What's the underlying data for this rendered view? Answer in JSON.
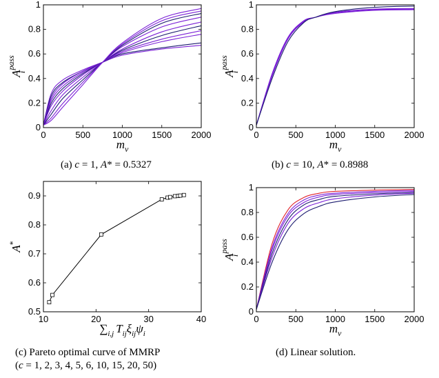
{
  "colors": {
    "purple": "#7a1fd6",
    "navy": "#1a1a6e",
    "red": "#e0202a",
    "black": "#000000"
  },
  "captions": {
    "a": "(a) c = 1, A* = 0.5327",
    "b": "(b) c = 10, A* = 0.8988",
    "c1": "(c) Pareto optimal curve of MMRP",
    "c2": "(c = 1, 2, 3, 4, 5, 6, 10, 15, 20, 50)",
    "d": "(d) Linear solution."
  },
  "chart_data": [
    {
      "id": "a",
      "type": "line",
      "xlabel": "m_v",
      "ylabel": "A_i^pass",
      "xlim": [
        0,
        2000
      ],
      "ylim": [
        0,
        1
      ],
      "xticks": [
        "0",
        "500",
        "1000",
        "1500",
        "2000"
      ],
      "yticks": [
        "0",
        "0.2",
        "0.4",
        "0.6",
        "0.8",
        "1"
      ],
      "note": "curves cross at (750, 0.5327)",
      "series": [
        {
          "x": [
            0,
            100,
            250,
            500,
            750,
            1000,
            1500,
            2000
          ],
          "y": [
            0.02,
            0.28,
            0.39,
            0.47,
            0.5327,
            0.59,
            0.64,
            0.67
          ]
        },
        {
          "x": [
            0,
            100,
            250,
            500,
            750,
            1000,
            1500,
            2000
          ],
          "y": [
            0.02,
            0.26,
            0.37,
            0.46,
            0.5327,
            0.6,
            0.65,
            0.69
          ]
        },
        {
          "x": [
            0,
            100,
            250,
            500,
            750,
            1000,
            1500,
            2000
          ],
          "y": [
            0.02,
            0.24,
            0.36,
            0.46,
            0.5327,
            0.61,
            0.7,
            0.76
          ]
        },
        {
          "x": [
            0,
            100,
            250,
            500,
            750,
            1000,
            1500,
            2000
          ],
          "y": [
            0.02,
            0.22,
            0.34,
            0.45,
            0.5327,
            0.62,
            0.72,
            0.79
          ]
        },
        {
          "x": [
            0,
            100,
            250,
            500,
            750,
            1000,
            1500,
            2000
          ],
          "y": [
            0.02,
            0.2,
            0.32,
            0.44,
            0.5327,
            0.63,
            0.75,
            0.83
          ]
        },
        {
          "x": [
            0,
            100,
            250,
            500,
            750,
            1000,
            1500,
            2000
          ],
          "y": [
            0.02,
            0.18,
            0.3,
            0.43,
            0.5327,
            0.64,
            0.78,
            0.86
          ]
        },
        {
          "x": [
            0,
            100,
            250,
            500,
            750,
            1000,
            1500,
            2000
          ],
          "y": [
            0.02,
            0.14,
            0.27,
            0.41,
            0.5327,
            0.66,
            0.82,
            0.9
          ]
        },
        {
          "x": [
            0,
            100,
            250,
            500,
            750,
            1000,
            1500,
            2000
          ],
          "y": [
            0.02,
            0.11,
            0.24,
            0.39,
            0.5327,
            0.67,
            0.85,
            0.93
          ]
        },
        {
          "x": [
            0,
            100,
            250,
            500,
            750,
            1000,
            1500,
            2000
          ],
          "y": [
            0.02,
            0.08,
            0.2,
            0.37,
            0.5327,
            0.68,
            0.87,
            0.95
          ]
        },
        {
          "x": [
            0,
            100,
            250,
            500,
            750,
            1000,
            1500,
            2000
          ],
          "y": [
            0.02,
            0.06,
            0.17,
            0.35,
            0.5327,
            0.69,
            0.89,
            0.97
          ]
        }
      ]
    },
    {
      "id": "b",
      "type": "line",
      "xlabel": "m_v",
      "ylabel": "A_i^pass",
      "xlim": [
        0,
        2000
      ],
      "ylim": [
        0,
        1
      ],
      "xticks": [
        "0",
        "500",
        "1000",
        "1500",
        "2000"
      ],
      "yticks": [
        "0",
        "0.2",
        "0.4",
        "0.6",
        "0.8",
        "1"
      ],
      "series": [
        {
          "x": [
            0,
            200,
            400,
            600,
            750,
            1000,
            1500,
            2000
          ],
          "y": [
            0.02,
            0.42,
            0.72,
            0.86,
            0.8988,
            0.93,
            0.955,
            0.96
          ]
        },
        {
          "x": [
            0,
            200,
            400,
            600,
            750,
            1000,
            1500,
            2000
          ],
          "y": [
            0.02,
            0.43,
            0.73,
            0.865,
            0.8988,
            0.935,
            0.96,
            0.965
          ]
        },
        {
          "x": [
            0,
            200,
            400,
            600,
            750,
            1000,
            1500,
            2000
          ],
          "y": [
            0.02,
            0.44,
            0.735,
            0.87,
            0.8988,
            0.94,
            0.965,
            0.97
          ]
        },
        {
          "x": [
            0,
            200,
            400,
            600,
            750,
            1000,
            1500,
            2000
          ],
          "y": [
            0.02,
            0.4,
            0.7,
            0.855,
            0.8988,
            0.945,
            0.98,
            0.99
          ]
        }
      ]
    },
    {
      "id": "c",
      "type": "line",
      "xlabel": "Σ_{i,j} T_ij ξ_ij ψ_i",
      "ylabel": "A*",
      "xlim": [
        10,
        40
      ],
      "ylim": [
        0.5,
        0.95
      ],
      "xticks": [
        "10",
        "20",
        "30",
        "40"
      ],
      "yticks": [
        "0.5",
        "0.6",
        "0.7",
        "0.8",
        "0.9"
      ],
      "series": [
        {
          "x": [
            11.1,
            11.7,
            21.0,
            32.5,
            33.6,
            34.1,
            35.0,
            35.6,
            36.0,
            36.7
          ],
          "y": [
            0.533,
            0.558,
            0.767,
            0.888,
            0.894,
            0.896,
            0.899,
            0.9,
            0.901,
            0.903
          ]
        }
      ]
    },
    {
      "id": "d",
      "type": "line",
      "xlabel": "m_v",
      "ylabel": "A_i^pass",
      "xlim": [
        0,
        2000
      ],
      "ylim": [
        0,
        1
      ],
      "xticks": [
        "0",
        "500",
        "1000",
        "1500",
        "2000"
      ],
      "yticks": [
        "0",
        "0.2",
        "0.4",
        "0.6",
        "0.8",
        "1"
      ],
      "series": [
        {
          "x": [
            0,
            200,
            400,
            600,
            800,
            1000,
            1500,
            2000
          ],
          "y": [
            0.02,
            0.55,
            0.82,
            0.92,
            0.955,
            0.97,
            0.98,
            0.985
          ]
        },
        {
          "x": [
            0,
            200,
            400,
            600,
            800,
            1000,
            1500,
            2000
          ],
          "y": [
            0.02,
            0.52,
            0.79,
            0.9,
            0.94,
            0.955,
            0.97,
            0.978
          ]
        },
        {
          "x": [
            0,
            200,
            400,
            600,
            800,
            1000,
            1500,
            2000
          ],
          "y": [
            0.02,
            0.5,
            0.77,
            0.88,
            0.925,
            0.945,
            0.96,
            0.97
          ]
        },
        {
          "x": [
            0,
            200,
            400,
            600,
            800,
            1000,
            1500,
            2000
          ],
          "y": [
            0.02,
            0.47,
            0.74,
            0.86,
            0.905,
            0.93,
            0.95,
            0.96
          ]
        },
        {
          "x": [
            0,
            200,
            400,
            600,
            800,
            1000,
            1500,
            2000
          ],
          "y": [
            0.02,
            0.44,
            0.71,
            0.83,
            0.88,
            0.91,
            0.94,
            0.955
          ]
        },
        {
          "x": [
            0,
            200,
            400,
            600,
            800,
            1000,
            1500,
            2000
          ],
          "y": [
            0.02,
            0.4,
            0.66,
            0.79,
            0.85,
            0.885,
            0.925,
            0.945
          ]
        }
      ]
    }
  ]
}
